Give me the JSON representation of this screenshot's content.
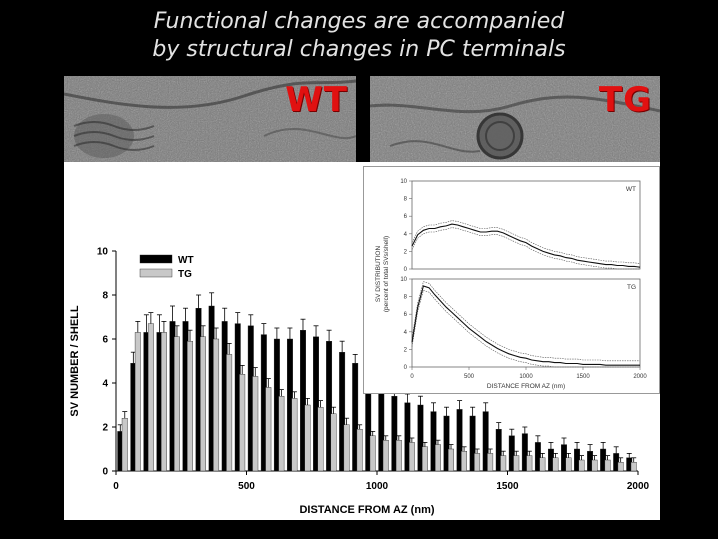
{
  "slide": {
    "title_line1": "Functional changes are accompanied",
    "title_line2": "by structural changes in PC terminals"
  },
  "em_images": {
    "wt_label": "WT",
    "tg_label": "TG",
    "label_color": "#e11111"
  },
  "chart_data": [
    {
      "type": "bar",
      "title": "",
      "xlabel": "DISTANCE FROM AZ (nm)",
      "ylabel": "SV NUMBER / SHELL",
      "xlim": [
        0,
        2000
      ],
      "ylim": [
        0,
        10
      ],
      "x_ticks": [
        0,
        500,
        1000,
        1500,
        2000
      ],
      "y_ticks": [
        0,
        2,
        4,
        6,
        8,
        10
      ],
      "legend": "top-left",
      "x": [
        25,
        75,
        125,
        175,
        225,
        275,
        325,
        375,
        425,
        475,
        525,
        575,
        625,
        675,
        725,
        775,
        825,
        875,
        925,
        975,
        1025,
        1075,
        1125,
        1175,
        1225,
        1275,
        1325,
        1375,
        1425,
        1475,
        1525,
        1575,
        1625,
        1675,
        1725,
        1775,
        1825,
        1875,
        1925,
        1975
      ],
      "series": [
        {
          "name": "WT",
          "color": "#000000",
          "values": [
            1.8,
            4.9,
            6.3,
            6.3,
            6.8,
            6.8,
            7.4,
            7.5,
            6.8,
            6.7,
            6.6,
            6.2,
            6.0,
            6.0,
            6.4,
            6.1,
            5.9,
            5.4,
            4.9,
            4.6,
            4.5,
            3.4,
            3.1,
            3.0,
            2.7,
            2.5,
            2.8,
            2.5,
            2.7,
            1.9,
            1.6,
            1.7,
            1.3,
            1.0,
            1.2,
            1.0,
            0.9,
            1.0,
            0.8,
            0.6
          ],
          "errors": [
            0.3,
            0.5,
            0.8,
            0.8,
            0.7,
            0.6,
            0.6,
            0.6,
            0.6,
            0.5,
            0.5,
            0.5,
            0.5,
            0.5,
            0.5,
            0.5,
            0.5,
            0.5,
            0.4,
            0.4,
            0.4,
            0.4,
            0.4,
            0.4,
            0.4,
            0.4,
            0.4,
            0.4,
            0.4,
            0.3,
            0.3,
            0.3,
            0.3,
            0.3,
            0.3,
            0.3,
            0.3,
            0.3,
            0.3,
            0.2
          ]
        },
        {
          "name": "TG",
          "color": "#c8c8c8",
          "values": [
            2.4,
            6.3,
            6.7,
            6.3,
            6.1,
            5.9,
            6.1,
            6.0,
            5.3,
            4.4,
            4.3,
            3.8,
            3.4,
            3.3,
            3.0,
            2.9,
            2.6,
            2.1,
            1.9,
            1.6,
            1.4,
            1.4,
            1.3,
            1.1,
            1.2,
            1.0,
            0.9,
            0.8,
            0.8,
            0.7,
            0.7,
            0.7,
            0.6,
            0.6,
            0.6,
            0.5,
            0.5,
            0.5,
            0.4,
            0.4
          ],
          "errors": [
            0.3,
            0.5,
            0.5,
            0.5,
            0.5,
            0.5,
            0.5,
            0.5,
            0.5,
            0.4,
            0.4,
            0.4,
            0.3,
            0.3,
            0.3,
            0.3,
            0.3,
            0.3,
            0.2,
            0.2,
            0.2,
            0.2,
            0.2,
            0.2,
            0.2,
            0.2,
            0.2,
            0.2,
            0.2,
            0.2,
            0.2,
            0.2,
            0.2,
            0.2,
            0.2,
            0.2,
            0.2,
            0.2,
            0.2,
            0.2
          ]
        }
      ]
    },
    {
      "type": "line",
      "title": "",
      "xlabel": "DISTANCE FROM AZ (nm)",
      "ylabel": "SV DISTRIBUTION",
      "ylabel2": "(percent of total SVs/shell)",
      "xlim": [
        0,
        2000
      ],
      "ylim": [
        0,
        10
      ],
      "x_ticks": [
        0,
        500,
        1000,
        1500,
        2000
      ],
      "y_ticks": [
        0,
        2,
        4,
        6,
        8,
        10
      ],
      "panels": [
        {
          "name": "WT",
          "x": [
            0,
            50,
            100,
            150,
            200,
            250,
            300,
            350,
            400,
            450,
            500,
            550,
            600,
            650,
            700,
            750,
            800,
            850,
            900,
            950,
            1000,
            1050,
            1100,
            1150,
            1200,
            1250,
            1300,
            1350,
            1400,
            1450,
            1500,
            1550,
            1600,
            1650,
            1700,
            1750,
            1800,
            1850,
            1900,
            1950,
            2000
          ],
          "y": [
            2.6,
            3.9,
            4.4,
            4.6,
            4.6,
            4.8,
            4.9,
            5.1,
            5.0,
            4.8,
            4.6,
            4.4,
            4.2,
            4.2,
            4.3,
            4.3,
            4.1,
            3.8,
            3.5,
            3.2,
            3.0,
            2.6,
            2.3,
            2.0,
            1.8,
            1.6,
            1.5,
            1.3,
            1.2,
            1.0,
            0.9,
            0.8,
            0.7,
            0.6,
            0.5,
            0.5,
            0.4,
            0.4,
            0.3,
            0.3,
            0.2
          ],
          "band": 0.4
        },
        {
          "name": "TG",
          "x": [
            0,
            50,
            100,
            150,
            200,
            250,
            300,
            350,
            400,
            450,
            500,
            550,
            600,
            650,
            700,
            750,
            800,
            850,
            900,
            950,
            1000,
            1050,
            1100,
            1150,
            1200,
            1250,
            1300,
            1350,
            1400,
            1450,
            1500,
            1550,
            1600,
            1650,
            1700,
            1750,
            1800,
            1850,
            1900,
            1950,
            2000
          ],
          "y": [
            2.8,
            6.8,
            9.2,
            9.0,
            8.2,
            7.5,
            6.8,
            6.2,
            5.6,
            5.0,
            4.4,
            3.9,
            3.4,
            2.9,
            2.5,
            2.1,
            1.8,
            1.5,
            1.3,
            1.1,
            1.0,
            0.8,
            0.7,
            0.6,
            0.6,
            0.5,
            0.5,
            0.4,
            0.4,
            0.4,
            0.3,
            0.3,
            0.3,
            0.3,
            0.2,
            0.2,
            0.2,
            0.2,
            0.2,
            0.2,
            0.2
          ],
          "band": 0.5
        }
      ]
    }
  ]
}
